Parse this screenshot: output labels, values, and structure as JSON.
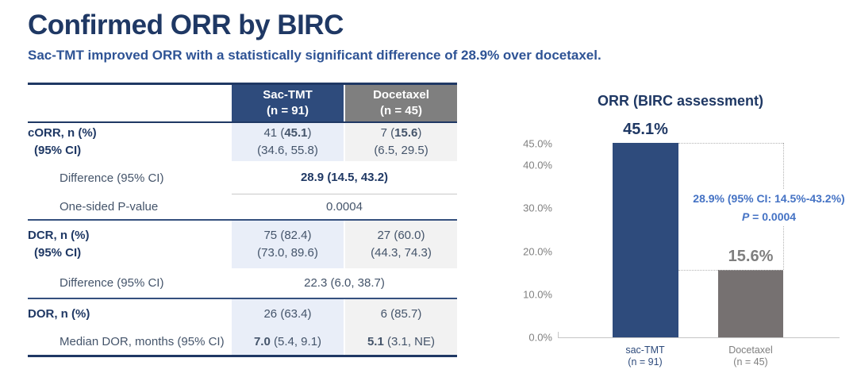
{
  "slide": {
    "title": "Confirmed ORR by BIRC",
    "subtitle": "Sac-TMT improved ORR with a statistically significant difference of 28.9% over docetaxel."
  },
  "colors": {
    "title_navy": "#1F3864",
    "subtitle_blue": "#2E5395",
    "header_navy": "#2E4B7C",
    "header_gray": "#7F7F7F",
    "column_blue_bg": "#E9EEF8",
    "column_gray_bg": "#F2F2F2",
    "annotation_blue": "#4472C4"
  },
  "table": {
    "header": {
      "sac1": "Sac-TMT",
      "sac2": "(n = 91)",
      "doc1": "Docetaxel",
      "doc2": "(n = 45)"
    },
    "corr": {
      "label1": "cORR, n (%)",
      "label2": "(95% CI)",
      "sac_pre": "41 (",
      "sac_bold": "45.1",
      "sac_post": ")",
      "sac_ci": "(34.6, 55.8)",
      "doc_pre": "7 (",
      "doc_bold": "15.6",
      "doc_post": ")",
      "doc_ci": "(6.5, 29.5)"
    },
    "corr_diff": {
      "label": "Difference (95% CI)",
      "value": "28.9 (14.5, 43.2)"
    },
    "corr_p": {
      "label": "One-sided P-value",
      "value": "0.0004"
    },
    "dcr": {
      "label1": "DCR, n (%)",
      "label2": "(95% CI)",
      "sac": "75 (82.4)",
      "sac_ci": "(73.0, 89.6)",
      "doc": "27 (60.0)",
      "doc_ci": "(44.3, 74.3)"
    },
    "dcr_diff": {
      "label": "Difference (95% CI)",
      "value": "22.3 (6.0, 38.7)"
    },
    "dor": {
      "label": "DOR, n (%)",
      "sac": "26 (63.4)",
      "doc": "6 (85.7)"
    },
    "dor_median": {
      "label": "Median DOR, months (95% CI)",
      "sac_bold": "7.0",
      "sac_post": " (5.4, 9.1)",
      "doc_bold": "5.1",
      "doc_post": " (3.1, NE)"
    }
  },
  "chart": {
    "cat1_line1": "sac-TMT",
    "cat1_line2": "(n = 91)",
    "cat2_line1": "Docetaxel",
    "cat2_line2": "(n = 45)",
    "annotation_line1": "28.9% (95% CI: 14.5%-43.2%)",
    "annotation_p_italic": "P",
    "annotation_p_rest": " = 0.0004"
  },
  "chart_data": {
    "type": "bar",
    "title": "ORR (BIRC assessment)",
    "categories": [
      "sac-TMT (n = 91)",
      "Docetaxel (n = 45)"
    ],
    "values": [
      45.1,
      15.6
    ],
    "bar_labels": [
      "45.1%",
      "15.6%"
    ],
    "bar_colors": [
      "#2E4B7C",
      "#767171"
    ],
    "ylim": [
      0,
      45
    ],
    "yticks": [
      0,
      10,
      20,
      30,
      40,
      45
    ],
    "ytick_labels": [
      "0.0%",
      "10.0%",
      "20.0%",
      "30.0%",
      "40.0%",
      "45.0%"
    ],
    "grid": false,
    "legend": false,
    "annotation": "28.9% (95% CI: 14.5%-43.2%), P = 0.0004"
  }
}
